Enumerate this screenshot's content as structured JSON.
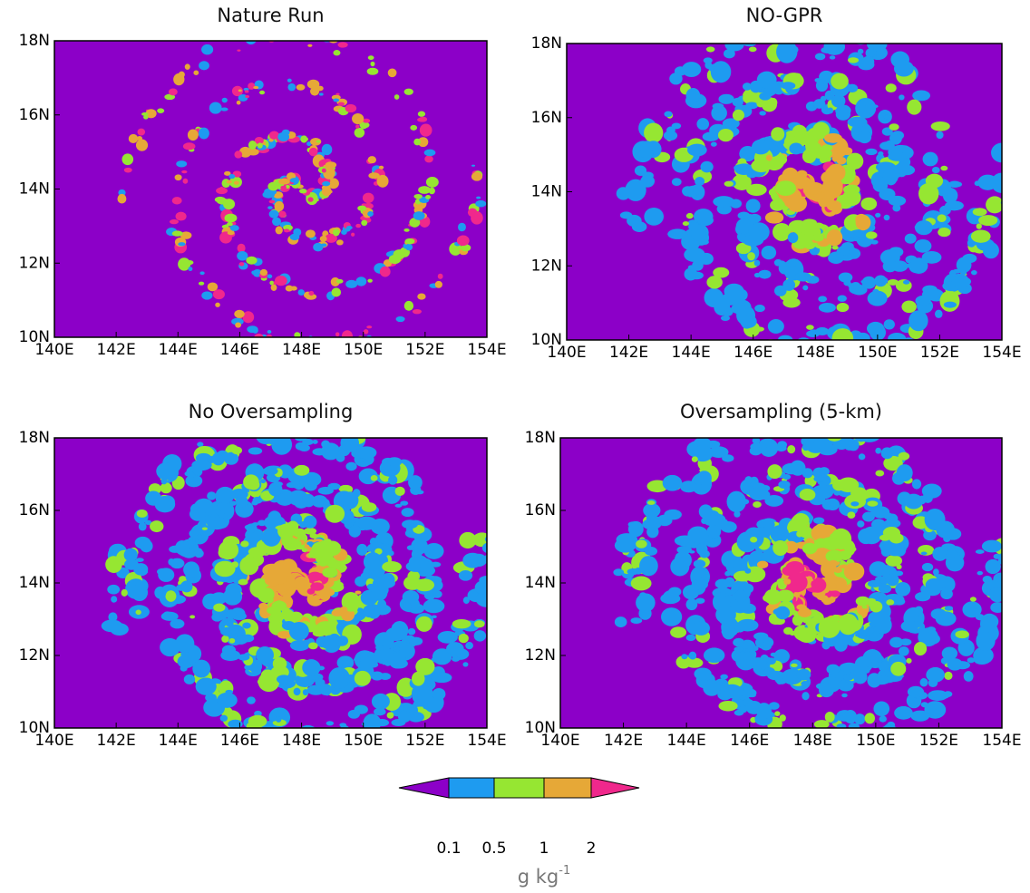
{
  "chart_data": [
    {
      "type": "contour",
      "title": "Nature Run",
      "style": "sparse",
      "xlim": [
        140,
        154
      ],
      "ylim": [
        10,
        18
      ],
      "xticks": [
        {
          "value": 140,
          "label": "140E"
        },
        {
          "value": 142,
          "label": "142E"
        },
        {
          "value": 144,
          "label": "144E"
        },
        {
          "value": 146,
          "label": "146E"
        },
        {
          "value": 148,
          "label": "148E"
        },
        {
          "value": 150,
          "label": "150E"
        },
        {
          "value": 152,
          "label": "152E"
        },
        {
          "value": 154,
          "label": "154E"
        }
      ],
      "yticks": [
        {
          "value": 10,
          "label": "10N"
        },
        {
          "value": 12,
          "label": "12N"
        },
        {
          "value": 14,
          "label": "14N"
        },
        {
          "value": 16,
          "label": "16N"
        },
        {
          "value": 18,
          "label": "18N"
        }
      ]
    },
    {
      "type": "contour",
      "title": "NO-GPR",
      "style": "broad",
      "xlim": [
        140,
        154
      ],
      "ylim": [
        10,
        18
      ],
      "xticks": [
        {
          "value": 140,
          "label": "140E"
        },
        {
          "value": 142,
          "label": "142E"
        },
        {
          "value": 144,
          "label": "144E"
        },
        {
          "value": 146,
          "label": "146E"
        },
        {
          "value": 148,
          "label": "148E"
        },
        {
          "value": 150,
          "label": "150E"
        },
        {
          "value": 152,
          "label": "152E"
        },
        {
          "value": 154,
          "label": "154E"
        }
      ],
      "yticks": [
        {
          "value": 10,
          "label": "10N"
        },
        {
          "value": 12,
          "label": "12N"
        },
        {
          "value": 14,
          "label": "14N"
        },
        {
          "value": 16,
          "label": "16N"
        },
        {
          "value": 18,
          "label": "18N"
        }
      ]
    },
    {
      "type": "contour",
      "title": "No Oversampling",
      "style": "dense",
      "xlim": [
        140,
        154
      ],
      "ylim": [
        10,
        18
      ],
      "xticks": [
        {
          "value": 140,
          "label": "140E"
        },
        {
          "value": 142,
          "label": "142E"
        },
        {
          "value": 144,
          "label": "144E"
        },
        {
          "value": 146,
          "label": "146E"
        },
        {
          "value": 148,
          "label": "148E"
        },
        {
          "value": 150,
          "label": "150E"
        },
        {
          "value": 152,
          "label": "152E"
        },
        {
          "value": 154,
          "label": "154E"
        }
      ],
      "yticks": [
        {
          "value": 10,
          "label": "10N"
        },
        {
          "value": 12,
          "label": "12N"
        },
        {
          "value": 14,
          "label": "14N"
        },
        {
          "value": 16,
          "label": "16N"
        },
        {
          "value": 18,
          "label": "18N"
        }
      ]
    },
    {
      "type": "contour",
      "title": "Oversampling (5-km)",
      "style": "dense",
      "xlim": [
        140,
        154
      ],
      "ylim": [
        10,
        18
      ],
      "xticks": [
        {
          "value": 140,
          "label": "140E"
        },
        {
          "value": 142,
          "label": "142E"
        },
        {
          "value": 144,
          "label": "144E"
        },
        {
          "value": 146,
          "label": "146E"
        },
        {
          "value": 148,
          "label": "148E"
        },
        {
          "value": 150,
          "label": "150E"
        },
        {
          "value": 152,
          "label": "152E"
        },
        {
          "value": 154,
          "label": "154E"
        }
      ],
      "yticks": [
        {
          "value": 10,
          "label": "10N"
        },
        {
          "value": 12,
          "label": "12N"
        },
        {
          "value": 14,
          "label": "14N"
        },
        {
          "value": 16,
          "label": "16N"
        },
        {
          "value": 18,
          "label": "18N"
        }
      ]
    }
  ],
  "colorbar": {
    "levels": [
      0.1,
      0.5,
      1,
      2
    ],
    "colors": [
      "#8c00c8",
      "#1e9bf0",
      "#96e632",
      "#e6a837",
      "#f0288c"
    ],
    "units": "g kg",
    "units_exponent": "-1"
  }
}
